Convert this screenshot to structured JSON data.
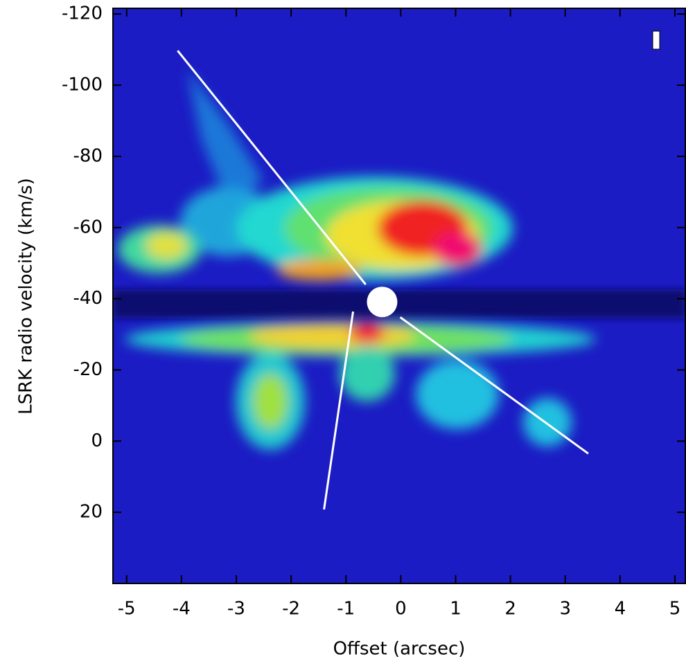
{
  "chart_data": {
    "type": "pv-image",
    "x_label": "Offset (arcsec)",
    "y_label": "LSRK radio velocity  (km/s)",
    "xlim": [
      -5.25,
      5.19
    ],
    "ylim": [
      -121.6,
      40
    ],
    "xticks": [
      -5,
      -4,
      -3,
      -2,
      -1,
      0,
      1,
      2,
      3,
      4,
      5
    ],
    "yticks": [
      -120,
      -100,
      -80,
      -60,
      -40,
      -20,
      0,
      20
    ],
    "lines": [
      {
        "x": [
          -4.07,
          -0.64
        ],
        "y": [
          -109.7,
          -44.0
        ]
      },
      {
        "x": [
          -0.01,
          3.42
        ],
        "y": [
          -34.8,
          3.5
        ]
      },
      {
        "x": [
          -0.87,
          -1.4
        ],
        "y": [
          -36.4,
          19.2
        ]
      }
    ],
    "marker": {
      "x": -0.34,
      "y": -39.1
    },
    "line_color": "#ffffff"
  }
}
